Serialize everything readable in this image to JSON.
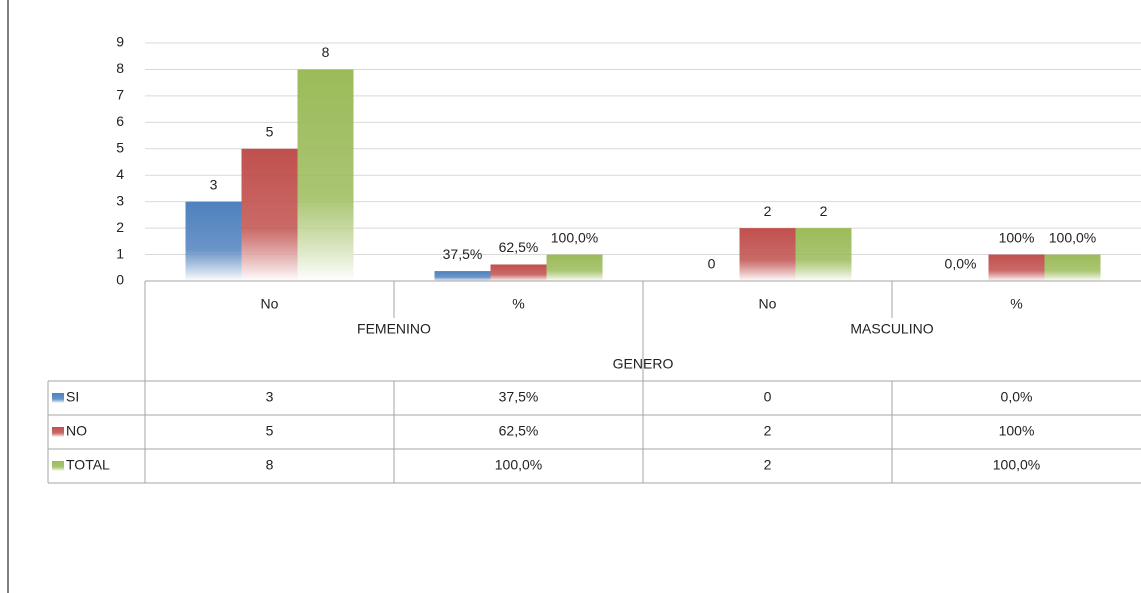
{
  "chart_data": {
    "type": "bar",
    "categories": [
      "No",
      "%",
      "No",
      "%"
    ],
    "groups": [
      "FEMENINO",
      "MASCULINO"
    ],
    "x_label": "GENERO",
    "series": [
      {
        "name": "SI",
        "color": "#4f81bd",
        "values": [
          3,
          0.375,
          0,
          0
        ],
        "value_labels": [
          "3",
          "37,5%",
          "0",
          "0,0%"
        ]
      },
      {
        "name": "NO",
        "color": "#c0504d",
        "values": [
          5,
          0.625,
          2,
          1
        ],
        "value_labels": [
          "5",
          "62,5%",
          "2",
          "100%"
        ]
      },
      {
        "name": "TOTAL",
        "color": "#9bbb59",
        "values": [
          8,
          1,
          2,
          1
        ],
        "value_labels": [
          "8",
          "100,0%",
          "2",
          "100,0%"
        ]
      }
    ],
    "ylim": [
      0,
      9
    ],
    "yticks": [
      0,
      1,
      2,
      3,
      4,
      5,
      6,
      7,
      8,
      9
    ],
    "grid": true,
    "data_table": true
  }
}
